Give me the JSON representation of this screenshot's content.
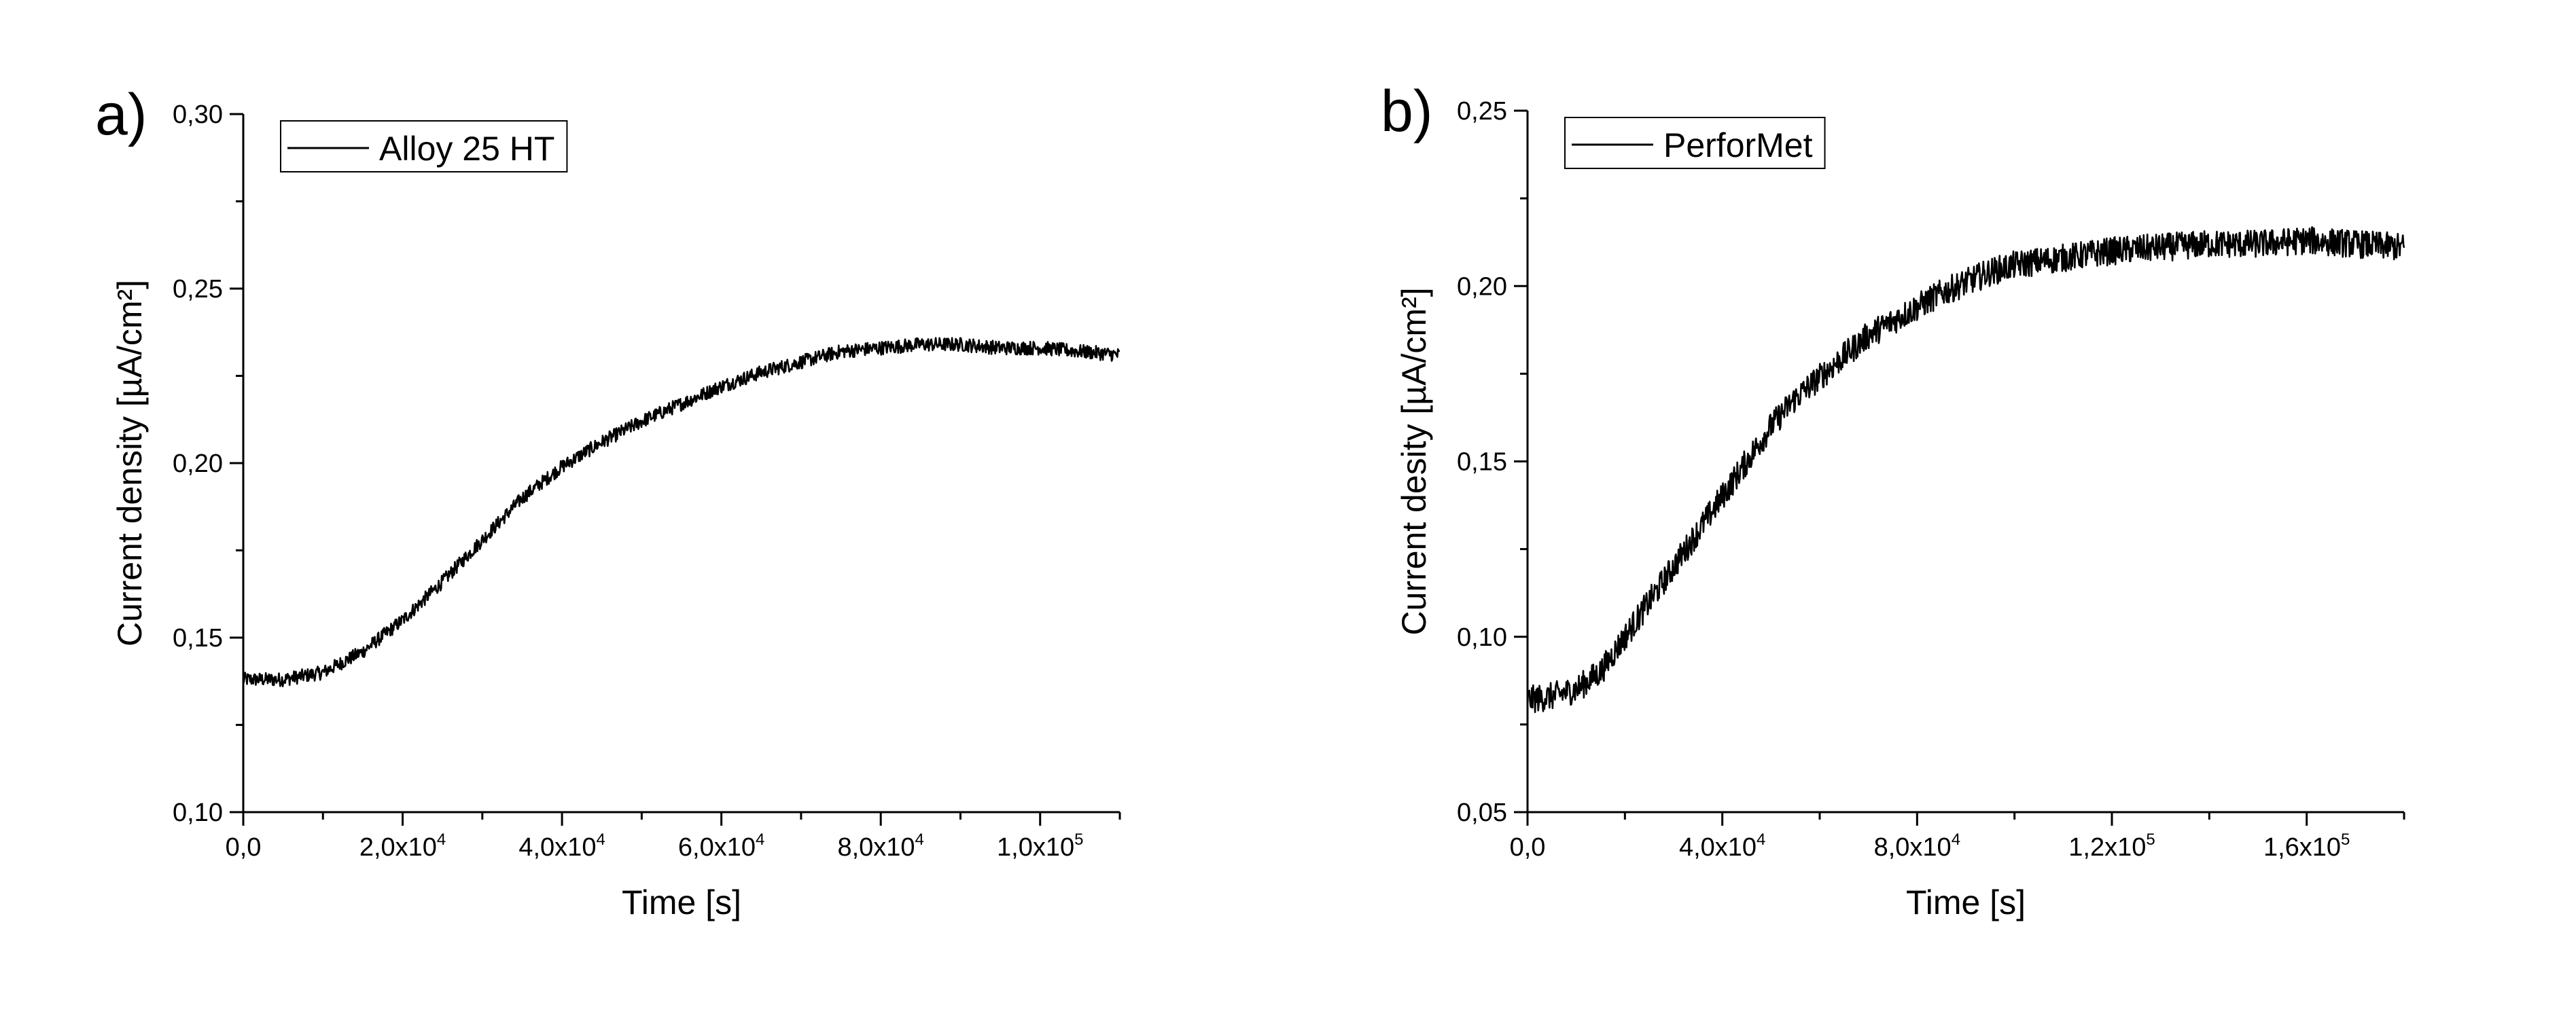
{
  "chart_data": [
    {
      "type": "line",
      "panel_label": "a)",
      "xlabel": "Time [s]",
      "ylabel": "Current density [µA/cm²]",
      "xlim": [
        0,
        110000
      ],
      "ylim": [
        0.1,
        0.3
      ],
      "x_ticks": [
        {
          "value": 0,
          "mantissa": "0,0",
          "exp": ""
        },
        {
          "value": 20000,
          "mantissa": "2,0x10",
          "exp": "4"
        },
        {
          "value": 40000,
          "mantissa": "4,0x10",
          "exp": "4"
        },
        {
          "value": 60000,
          "mantissa": "6,0x10",
          "exp": "4"
        },
        {
          "value": 80000,
          "mantissa": "8,0x10",
          "exp": "4"
        },
        {
          "value": 100000,
          "mantissa": "1,0x10",
          "exp": "5"
        }
      ],
      "y_ticks": [
        {
          "value": 0.1,
          "label": "0,10"
        },
        {
          "value": 0.15,
          "label": "0,15"
        },
        {
          "value": 0.2,
          "label": "0,20"
        },
        {
          "value": 0.25,
          "label": "0,25"
        },
        {
          "value": 0.3,
          "label": "0,30"
        }
      ],
      "legend_position": "top-left",
      "series": [
        {
          "name": "Alloy 25 HT",
          "color": "#000000",
          "noise": 0.002,
          "x": [
            0,
            5000,
            10000,
            15000,
            20000,
            25000,
            30000,
            35000,
            40000,
            45000,
            50000,
            55000,
            60000,
            65000,
            70000,
            75000,
            80000,
            85000,
            90000,
            95000,
            100000,
            105000,
            110000
          ],
          "y": [
            0.138,
            0.138,
            0.14,
            0.146,
            0.155,
            0.166,
            0.178,
            0.19,
            0.199,
            0.206,
            0.212,
            0.217,
            0.222,
            0.226,
            0.229,
            0.232,
            0.233,
            0.234,
            0.234,
            0.233,
            0.233,
            0.232,
            0.231
          ]
        }
      ]
    },
    {
      "type": "line",
      "panel_label": "b)",
      "xlabel": "Time [s]",
      "ylabel": "Current desity [µA/cm²]",
      "xlim": [
        0,
        180000
      ],
      "ylim": [
        0.05,
        0.25
      ],
      "x_ticks": [
        {
          "value": 0,
          "mantissa": "0,0",
          "exp": ""
        },
        {
          "value": 40000,
          "mantissa": "4,0x10",
          "exp": "4"
        },
        {
          "value": 80000,
          "mantissa": "8,0x10",
          "exp": "4"
        },
        {
          "value": 120000,
          "mantissa": "1,2x10",
          "exp": "5"
        },
        {
          "value": 160000,
          "mantissa": "1,6x10",
          "exp": "5"
        }
      ],
      "y_ticks": [
        {
          "value": 0.05,
          "label": "0,05"
        },
        {
          "value": 0.1,
          "label": "0,10"
        },
        {
          "value": 0.15,
          "label": "0,15"
        },
        {
          "value": 0.2,
          "label": "0,20"
        },
        {
          "value": 0.25,
          "label": "0,25"
        }
      ],
      "legend_position": "top-left",
      "series": [
        {
          "name": "PerforMet",
          "color": "#000000",
          "noise": 0.004,
          "x": [
            0,
            5000,
            10000,
            15000,
            20000,
            25000,
            30000,
            35000,
            40000,
            45000,
            50000,
            55000,
            60000,
            65000,
            70000,
            75000,
            80000,
            85000,
            90000,
            95000,
            100000,
            110000,
            120000,
            130000,
            140000,
            150000,
            160000,
            170000,
            180000
          ],
          "y": [
            0.082,
            0.083,
            0.085,
            0.09,
            0.1,
            0.11,
            0.12,
            0.13,
            0.14,
            0.15,
            0.16,
            0.168,
            0.174,
            0.18,
            0.186,
            0.19,
            0.194,
            0.198,
            0.201,
            0.204,
            0.206,
            0.208,
            0.21,
            0.211,
            0.212,
            0.212,
            0.213,
            0.212,
            0.211
          ]
        }
      ]
    }
  ]
}
